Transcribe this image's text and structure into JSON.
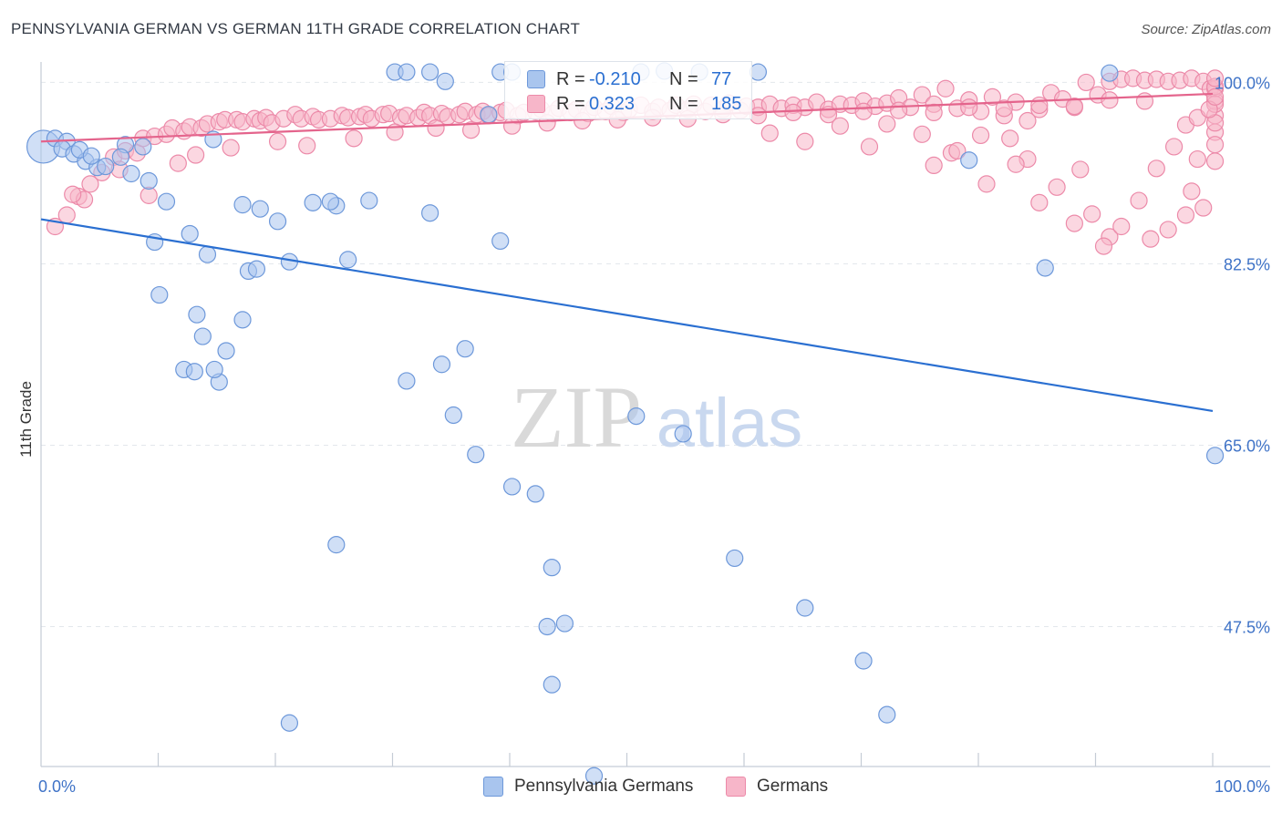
{
  "title": "PENNSYLVANIA GERMAN VS GERMAN 11TH GRADE CORRELATION CHART",
  "source": "Source: ZipAtlas.com",
  "watermark": {
    "zip": "ZIP",
    "atlas": "atlas"
  },
  "legend_box": {
    "rows": [
      {
        "r_label": "R =",
        "r_value": "-0.210",
        "n_label": "N =",
        "n_value": "77"
      },
      {
        "r_label": "R =",
        "r_value": "0.323",
        "n_label": "N =",
        "n_value": "185"
      }
    ]
  },
  "bottom_legend": [
    "Pennsylvania Germans",
    "Germans"
  ],
  "colors": {
    "blue_fill": "#a9c5ee",
    "blue_stroke": "#6d98da",
    "blue_line": "#2a6fd1",
    "pink_fill": "#f7b6c9",
    "pink_stroke": "#ec8aa9",
    "pink_line": "#e4648c",
    "tick_text": "#3f73c7",
    "grid": "#e3e7ec"
  },
  "chart_data": {
    "type": "scatter",
    "title": "PENNSYLVANIA GERMAN VS GERMAN 11TH GRADE CORRELATION CHART",
    "xlabel": "",
    "ylabel": "11th Grade",
    "xlim": [
      0,
      100
    ],
    "ylim": [
      34,
      102.5
    ],
    "x_tick_labels": [
      "0.0%",
      "100.0%"
    ],
    "y_ticks": [
      100.0,
      82.5,
      65.0,
      47.5
    ],
    "y_tick_labels": [
      "100.0%",
      "82.5%",
      "65.0%",
      "47.5%"
    ],
    "grid": true,
    "series": [
      {
        "name": "Pennsylvania Germans",
        "R": -0.21,
        "N": 77,
        "trend": {
          "x": [
            0,
            100
          ],
          "y": [
            86.8,
            68.3
          ]
        },
        "points": [
          [
            0.2,
            93.8
          ],
          [
            1.2,
            94.6
          ],
          [
            2.2,
            94.3
          ],
          [
            1.8,
            93.6
          ],
          [
            2.8,
            93.1
          ],
          [
            3.8,
            92.4
          ],
          [
            3.3,
            93.5
          ],
          [
            4.8,
            91.8
          ],
          [
            4.3,
            92.9
          ],
          [
            5.5,
            91.9
          ],
          [
            7.2,
            94.0
          ],
          [
            8.7,
            93.8
          ],
          [
            6.8,
            92.8
          ],
          [
            7.7,
            91.2
          ],
          [
            9.2,
            90.5
          ],
          [
            10.7,
            88.5
          ],
          [
            12.7,
            85.4
          ],
          [
            14.7,
            94.5
          ],
          [
            14.2,
            83.4
          ],
          [
            13.3,
            77.6
          ],
          [
            12.2,
            72.3
          ],
          [
            9.7,
            84.6
          ],
          [
            10.1,
            79.5
          ],
          [
            13.1,
            72.1
          ],
          [
            13.8,
            75.5
          ],
          [
            15.2,
            71.1
          ],
          [
            17.2,
            88.2
          ],
          [
            18.7,
            87.8
          ],
          [
            20.2,
            86.6
          ],
          [
            17.7,
            81.8
          ],
          [
            17.2,
            77.1
          ],
          [
            14.8,
            72.3
          ],
          [
            15.8,
            74.1
          ],
          [
            18.4,
            82.0
          ],
          [
            21.2,
            82.7
          ],
          [
            23.2,
            88.4
          ],
          [
            25.2,
            88.1
          ],
          [
            24.7,
            88.5
          ],
          [
            26.2,
            82.9
          ],
          [
            28.0,
            88.6
          ],
          [
            33.2,
            87.4
          ],
          [
            31.2,
            71.2
          ],
          [
            34.2,
            72.8
          ],
          [
            25.2,
            55.4
          ],
          [
            21.2,
            38.2
          ],
          [
            39.2,
            84.7
          ],
          [
            35.2,
            67.9
          ],
          [
            36.2,
            74.3
          ],
          [
            37.1,
            64.1
          ],
          [
            40.2,
            61.0
          ],
          [
            43.6,
            53.2
          ],
          [
            44.7,
            47.8
          ],
          [
            43.2,
            47.5
          ],
          [
            42.2,
            60.3
          ],
          [
            43.6,
            41.9
          ],
          [
            47.2,
            33.1
          ],
          [
            59.2,
            54.1
          ],
          [
            54.8,
            66.1
          ],
          [
            50.8,
            67.8
          ],
          [
            65.2,
            49.3
          ],
          [
            79.2,
            92.5
          ],
          [
            70.2,
            44.2
          ],
          [
            72.2,
            39.0
          ],
          [
            85.7,
            82.1
          ],
          [
            100.2,
            64.0
          ],
          [
            61.2,
            101.0
          ],
          [
            56.2,
            101.0
          ],
          [
            51.2,
            101.0
          ],
          [
            53.2,
            101.1
          ],
          [
            39.2,
            101.0
          ],
          [
            40.2,
            101.0
          ],
          [
            30.2,
            101.0
          ],
          [
            31.2,
            101.0
          ],
          [
            33.2,
            101.0
          ],
          [
            34.5,
            100.1
          ],
          [
            38.2,
            96.9
          ],
          [
            91.2,
            100.9
          ]
        ]
      },
      {
        "name": "Germans",
        "R": 0.323,
        "N": 185,
        "trend": {
          "x": [
            0,
            100
          ],
          "y": [
            94.3,
            98.9
          ]
        },
        "points": [
          [
            1.2,
            86.1
          ],
          [
            2.2,
            87.2
          ],
          [
            3.2,
            89.0
          ],
          [
            3.7,
            88.7
          ],
          [
            2.7,
            89.2
          ],
          [
            4.2,
            90.2
          ],
          [
            5.2,
            91.3
          ],
          [
            6.2,
            92.8
          ],
          [
            7.2,
            93.4
          ],
          [
            8.2,
            93.2
          ],
          [
            8.7,
            94.6
          ],
          [
            9.7,
            94.8
          ],
          [
            10.7,
            95.0
          ],
          [
            11.2,
            95.6
          ],
          [
            12.2,
            95.3
          ],
          [
            12.7,
            95.7
          ],
          [
            13.7,
            95.6
          ],
          [
            14.2,
            96.0
          ],
          [
            15.2,
            96.2
          ],
          [
            15.7,
            96.4
          ],
          [
            16.7,
            96.4
          ],
          [
            17.2,
            96.2
          ],
          [
            18.2,
            96.5
          ],
          [
            18.7,
            96.3
          ],
          [
            19.2,
            96.6
          ],
          [
            19.7,
            96.1
          ],
          [
            20.7,
            96.5
          ],
          [
            21.7,
            96.9
          ],
          [
            22.2,
            96.5
          ],
          [
            23.2,
            96.7
          ],
          [
            23.7,
            96.4
          ],
          [
            24.7,
            96.5
          ],
          [
            25.7,
            96.8
          ],
          [
            26.2,
            96.6
          ],
          [
            27.2,
            96.7
          ],
          [
            27.7,
            96.9
          ],
          [
            28.2,
            96.5
          ],
          [
            29.2,
            96.9
          ],
          [
            29.7,
            97.0
          ],
          [
            30.7,
            96.6
          ],
          [
            31.2,
            96.8
          ],
          [
            32.2,
            96.6
          ],
          [
            32.7,
            97.1
          ],
          [
            33.2,
            96.8
          ],
          [
            34.2,
            97.0
          ],
          [
            34.7,
            96.7
          ],
          [
            35.7,
            96.9
          ],
          [
            36.2,
            97.2
          ],
          [
            37.2,
            96.9
          ],
          [
            37.7,
            97.2
          ],
          [
            38.2,
            96.8
          ],
          [
            39.2,
            97.1
          ],
          [
            39.7,
            97.3
          ],
          [
            40.7,
            96.8
          ],
          [
            41.2,
            97.1
          ],
          [
            42.2,
            97.2
          ],
          [
            42.7,
            97.4
          ],
          [
            43.7,
            97.0
          ],
          [
            44.2,
            97.5
          ],
          [
            45.2,
            97.1
          ],
          [
            45.7,
            97.4
          ],
          [
            46.7,
            97.0
          ],
          [
            47.2,
            97.6
          ],
          [
            48.2,
            97.2
          ],
          [
            48.7,
            97.7
          ],
          [
            49.7,
            97.1
          ],
          [
            50.2,
            97.4
          ],
          [
            51.2,
            97.8
          ],
          [
            52.2,
            97.2
          ],
          [
            52.7,
            97.6
          ],
          [
            53.7,
            97.3
          ],
          [
            54.2,
            97.8
          ],
          [
            55.2,
            97.4
          ],
          [
            55.7,
            97.9
          ],
          [
            56.7,
            97.2
          ],
          [
            57.2,
            97.8
          ],
          [
            58.2,
            97.4
          ],
          [
            58.7,
            98.0
          ],
          [
            59.7,
            97.3
          ],
          [
            60.2,
            97.7
          ],
          [
            61.2,
            97.6
          ],
          [
            62.2,
            97.9
          ],
          [
            63.2,
            97.5
          ],
          [
            64.2,
            97.8
          ],
          [
            65.2,
            97.6
          ],
          [
            66.2,
            98.1
          ],
          [
            67.2,
            97.4
          ],
          [
            68.2,
            97.9
          ],
          [
            69.2,
            97.8
          ],
          [
            70.2,
            98.2
          ],
          [
            71.2,
            97.7
          ],
          [
            72.2,
            98.0
          ],
          [
            73.2,
            98.5
          ],
          [
            74.2,
            97.6
          ],
          [
            75.2,
            98.8
          ],
          [
            76.2,
            97.9
          ],
          [
            77.2,
            99.4
          ],
          [
            78.2,
            97.5
          ],
          [
            79.2,
            98.3
          ],
          [
            80.2,
            97.2
          ],
          [
            81.2,
            98.6
          ],
          [
            82.2,
            96.8
          ],
          [
            83.2,
            98.1
          ],
          [
            84.2,
            96.3
          ],
          [
            85.2,
            97.4
          ],
          [
            86.2,
            99.0
          ],
          [
            87.2,
            98.4
          ],
          [
            88.2,
            97.6
          ],
          [
            89.2,
            100.0
          ],
          [
            90.2,
            98.8
          ],
          [
            91.2,
            100.1
          ],
          [
            92.2,
            100.3
          ],
          [
            93.2,
            100.4
          ],
          [
            94.2,
            100.2
          ],
          [
            95.2,
            100.3
          ],
          [
            96.2,
            100.1
          ],
          [
            97.2,
            100.2
          ],
          [
            98.2,
            100.4
          ],
          [
            99.2,
            100.1
          ],
          [
            99.8,
            99.4
          ],
          [
            6.7,
            91.6
          ],
          [
            9.2,
            89.1
          ],
          [
            11.7,
            92.2
          ],
          [
            13.2,
            93.0
          ],
          [
            16.2,
            93.7
          ],
          [
            20.2,
            94.3
          ],
          [
            22.7,
            93.9
          ],
          [
            26.7,
            94.6
          ],
          [
            30.2,
            95.2
          ],
          [
            33.7,
            95.6
          ],
          [
            36.7,
            95.4
          ],
          [
            40.2,
            95.8
          ],
          [
            43.2,
            96.1
          ],
          [
            46.2,
            96.3
          ],
          [
            49.2,
            96.4
          ],
          [
            52.2,
            96.6
          ],
          [
            55.2,
            96.5
          ],
          [
            58.2,
            96.9
          ],
          [
            61.2,
            96.8
          ],
          [
            64.2,
            97.1
          ],
          [
            67.2,
            96.9
          ],
          [
            70.2,
            97.2
          ],
          [
            73.2,
            97.3
          ],
          [
            76.2,
            97.1
          ],
          [
            79.2,
            97.6
          ],
          [
            82.2,
            97.5
          ],
          [
            85.2,
            97.8
          ],
          [
            88.2,
            97.7
          ],
          [
            91.2,
            98.3
          ],
          [
            94.2,
            98.2
          ],
          [
            62.2,
            95.1
          ],
          [
            65.2,
            94.3
          ],
          [
            68.2,
            95.8
          ],
          [
            70.7,
            93.8
          ],
          [
            72.2,
            96.0
          ],
          [
            75.2,
            95.0
          ],
          [
            77.7,
            93.2
          ],
          [
            80.2,
            94.9
          ],
          [
            82.7,
            94.6
          ],
          [
            84.2,
            92.6
          ],
          [
            85.2,
            88.4
          ],
          [
            88.7,
            91.6
          ],
          [
            89.7,
            87.3
          ],
          [
            91.2,
            85.1
          ],
          [
            94.7,
            84.9
          ],
          [
            96.2,
            85.8
          ],
          [
            97.7,
            87.2
          ],
          [
            98.2,
            89.5
          ],
          [
            98.7,
            92.6
          ],
          [
            99.2,
            87.9
          ],
          [
            100.2,
            92.4
          ],
          [
            100.2,
            95.2
          ],
          [
            100.2,
            96.8
          ],
          [
            100.2,
            98.2
          ],
          [
            100.2,
            99.4
          ],
          [
            100.2,
            96.1
          ],
          [
            100.2,
            97.9
          ],
          [
            100.2,
            99.6
          ],
          [
            100.2,
            100.4
          ],
          [
            100.2,
            94.0
          ],
          [
            76.2,
            92.0
          ],
          [
            78.2,
            93.4
          ],
          [
            80.7,
            90.2
          ],
          [
            83.2,
            92.1
          ],
          [
            86.7,
            89.9
          ],
          [
            88.2,
            86.4
          ],
          [
            90.7,
            84.2
          ],
          [
            92.2,
            86.1
          ],
          [
            93.7,
            88.6
          ],
          [
            95.2,
            91.7
          ],
          [
            96.7,
            93.8
          ],
          [
            97.7,
            95.9
          ],
          [
            98.7,
            96.6
          ],
          [
            99.7,
            97.4
          ],
          [
            100.2,
            98.6
          ]
        ]
      }
    ]
  }
}
